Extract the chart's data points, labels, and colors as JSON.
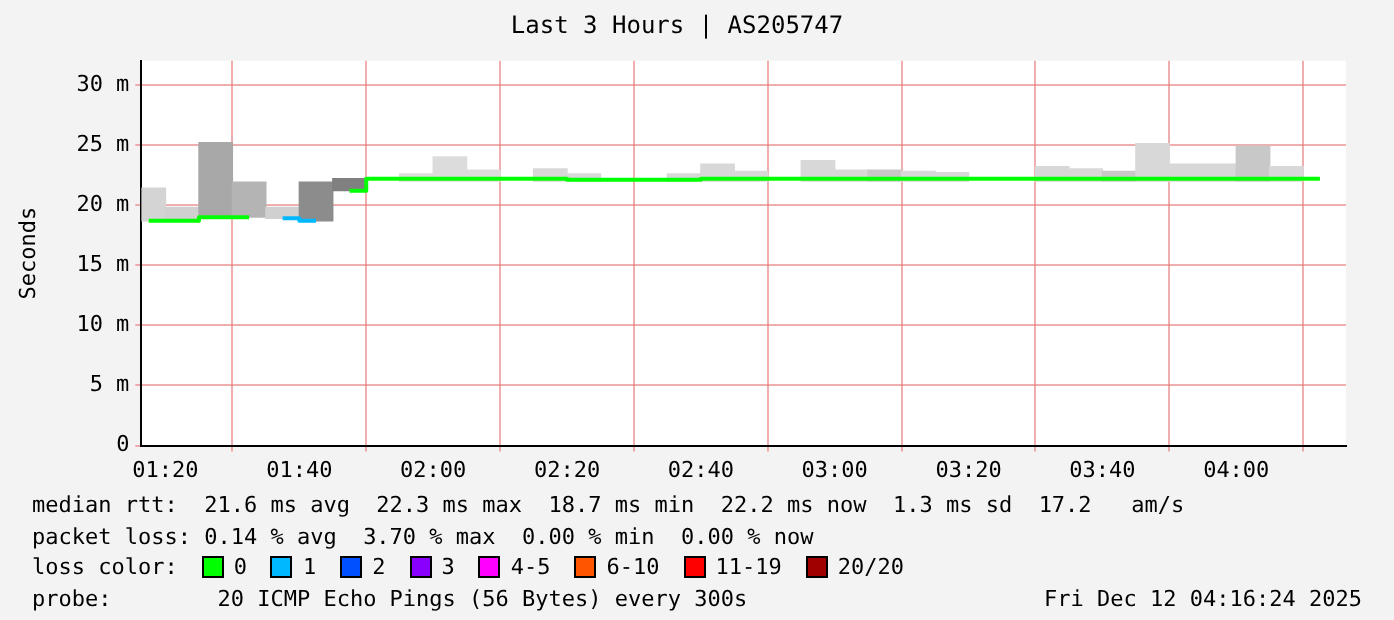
{
  "chart_data": {
    "type": "step",
    "title": "Last 3 Hours | AS205747",
    "ylabel": "Seconds",
    "x": [
      1.29167,
      1.375,
      1.45833,
      1.54167,
      1.625,
      1.70833,
      1.79167,
      1.875,
      1.95833,
      2.04167,
      2.125,
      2.20833,
      2.29167,
      2.375,
      2.45833,
      2.54167,
      2.625,
      2.70833,
      2.79167,
      2.875,
      2.95833,
      3.04167,
      3.125,
      3.20833,
      3.29167,
      3.375,
      3.45833,
      3.54167,
      3.625,
      3.70833,
      3.79167,
      3.875,
      3.95833,
      4.04167,
      4.125,
      4.20833
    ],
    "xlim": [
      1.2733,
      4.2733
    ],
    "xticks": [
      {
        "value": 1.33333,
        "label": "01:20"
      },
      {
        "value": 1.66667,
        "label": "01:40"
      },
      {
        "value": 2,
        "label": "02:00"
      },
      {
        "value": 2.33333,
        "label": "02:20"
      },
      {
        "value": 2.66667,
        "label": "02:40"
      },
      {
        "value": 3,
        "label": "03:00"
      },
      {
        "value": 3.33333,
        "label": "03:20"
      },
      {
        "value": 3.66667,
        "label": "03:40"
      },
      {
        "value": 4,
        "label": "04:00"
      }
    ],
    "ylim": [
      0,
      32
    ],
    "yticks": [
      0,
      {
        "value": 5,
        "label": "5 m"
      },
      {
        "value": 10,
        "label": "10 m"
      },
      {
        "value": 15,
        "label": "15 m"
      },
      {
        "value": 20,
        "label": "20 m"
      },
      {
        "value": 25,
        "label": "25 m"
      },
      {
        "value": 30,
        "label": "30 m"
      }
    ],
    "grid": true,
    "marker": "none",
    "legend": "bottom",
    "legend_title": "loss color:",
    "series": [
      {
        "type": "bar",
        "colors": [
          "#d4d4d4",
          "#d0d0d0",
          "#a8a8a8",
          "#b4b4b4",
          "#d0d0d0",
          "#8c8c8c",
          "#808080",
          "#dcdcdc",
          "#dcdcdc",
          "#dcdcdc",
          "#dcdcdc",
          "#dcdcdc",
          "#d8d8d8",
          "#d8d8d8",
          "#d8d8d8",
          "#d8d8d8",
          "#d8d8d8",
          "#d8d8d8",
          "#d8d8d8",
          "#d8d8d8",
          "#d8d8d8",
          "#d8d8d8",
          "#c8c8c8",
          "#d8d8d8",
          "#d8d8d8",
          "#d8d8d8",
          "#d8d8d8",
          "#d8d8d8",
          "#d8d8d8",
          "#c8c8c8",
          "#d8d8d8",
          "#d8d8d8",
          "#d8d8d8",
          "#c8c8c8",
          "#d8d8d8",
          "#d8d8d8"
        ],
        "base": [
          18.7,
          18.7,
          19.0,
          19.0,
          18.9,
          18.7,
          21.2,
          null,
          22.0,
          22.0,
          22.0,
          null,
          22.0,
          22.0,
          null,
          null,
          22.0,
          22.0,
          22.0,
          null,
          22.0,
          22.0,
          22.0,
          22.0,
          22.0,
          null,
          null,
          22.0,
          22.0,
          22.0,
          22.0,
          22.0,
          22.0,
          22.0,
          22.0,
          null
        ],
        "values": [
          2.7,
          1.1,
          6.2,
          2.9,
          0.9,
          3.2,
          1.0,
          null,
          0.6,
          2.0,
          0.9,
          null,
          1.0,
          0.6,
          null,
          null,
          0.6,
          1.4,
          0.8,
          null,
          1.7,
          0.9,
          0.9,
          0.8,
          0.7,
          null,
          null,
          1.2,
          1.0,
          0.8,
          3.1,
          1.4,
          1.4,
          2.9,
          1.2,
          null
        ]
      },
      {
        "name": "0",
        "color": "#00ff00",
        "values": [
          18.7,
          18.7,
          19.0,
          19.0,
          null,
          null,
          21.2,
          22.2,
          22.2,
          22.2,
          22.2,
          22.2,
          22.2,
          22.1,
          22.1,
          22.1,
          22.1,
          22.2,
          22.2,
          22.2,
          22.2,
          22.2,
          22.2,
          22.2,
          22.2,
          22.2,
          22.2,
          22.2,
          22.2,
          22.2,
          22.2,
          22.2,
          22.2,
          22.2,
          22.2,
          22.2
        ]
      },
      {
        "name": "1",
        "color": "#00b8ff",
        "values": [
          null,
          null,
          null,
          null,
          18.9,
          18.7,
          null,
          null,
          null,
          null,
          null,
          null,
          null,
          null,
          null,
          null,
          null,
          null,
          null,
          null,
          null,
          null,
          null,
          null,
          null,
          null,
          null,
          null,
          null,
          null,
          null,
          null,
          null,
          null,
          null,
          null
        ]
      },
      {
        "name": "2",
        "color": "#0050ff",
        "values": [
          null,
          null,
          null,
          null,
          null,
          null,
          null,
          null,
          null,
          null,
          null,
          null,
          null,
          null,
          null,
          null,
          null,
          null,
          null,
          null,
          null,
          null,
          null,
          null,
          null,
          null,
          null,
          null,
          null,
          null,
          null,
          null,
          null,
          null,
          null,
          null
        ]
      },
      {
        "name": "3",
        "color": "#8a00ff",
        "values": [
          null,
          null,
          null,
          null,
          null,
          null,
          null,
          null,
          null,
          null,
          null,
          null,
          null,
          null,
          null,
          null,
          null,
          null,
          null,
          null,
          null,
          null,
          null,
          null,
          null,
          null,
          null,
          null,
          null,
          null,
          null,
          null,
          null,
          null,
          null,
          null
        ]
      },
      {
        "name": "4-5",
        "color": "#ff00ff",
        "values": [
          null,
          null,
          null,
          null,
          null,
          null,
          null,
          null,
          null,
          null,
          null,
          null,
          null,
          null,
          null,
          null,
          null,
          null,
          null,
          null,
          null,
          null,
          null,
          null,
          null,
          null,
          null,
          null,
          null,
          null,
          null,
          null,
          null,
          null,
          null,
          null
        ]
      },
      {
        "name": "6-10",
        "color": "#ff5500",
        "values": [
          null,
          null,
          null,
          null,
          null,
          null,
          null,
          null,
          null,
          null,
          null,
          null,
          null,
          null,
          null,
          null,
          null,
          null,
          null,
          null,
          null,
          null,
          null,
          null,
          null,
          null,
          null,
          null,
          null,
          null,
          null,
          null,
          null,
          null,
          null,
          null
        ]
      },
      {
        "name": "11-19",
        "color": "#ff0000",
        "values": [
          null,
          null,
          null,
          null,
          null,
          null,
          null,
          null,
          null,
          null,
          null,
          null,
          null,
          null,
          null,
          null,
          null,
          null,
          null,
          null,
          null,
          null,
          null,
          null,
          null,
          null,
          null,
          null,
          null,
          null,
          null,
          null,
          null,
          null,
          null,
          null
        ]
      },
      {
        "name": "20/20",
        "color": "#a10000",
        "values": [
          null,
          null,
          null,
          null,
          null,
          null,
          null,
          null,
          null,
          null,
          null,
          null,
          null,
          null,
          null,
          null,
          null,
          null,
          null,
          null,
          null,
          null,
          null,
          null,
          null,
          null,
          null,
          null,
          null,
          null,
          null,
          null,
          null,
          null,
          null,
          null
        ]
      }
    ],
    "annotations": [
      "median rtt:  21.6 ms avg  22.3 ms max  18.7 ms min  22.2 ms now  1.3 ms sd  17.2   am/s",
      "packet loss: 0.14 % avg  3.70 % max  0.00 % min  0.00 % now",
      "probe:        20 ICMP Echo Pings (56 Bytes) every 300s",
      "Fri Dec 12 04:16:24 2025"
    ]
  }
}
